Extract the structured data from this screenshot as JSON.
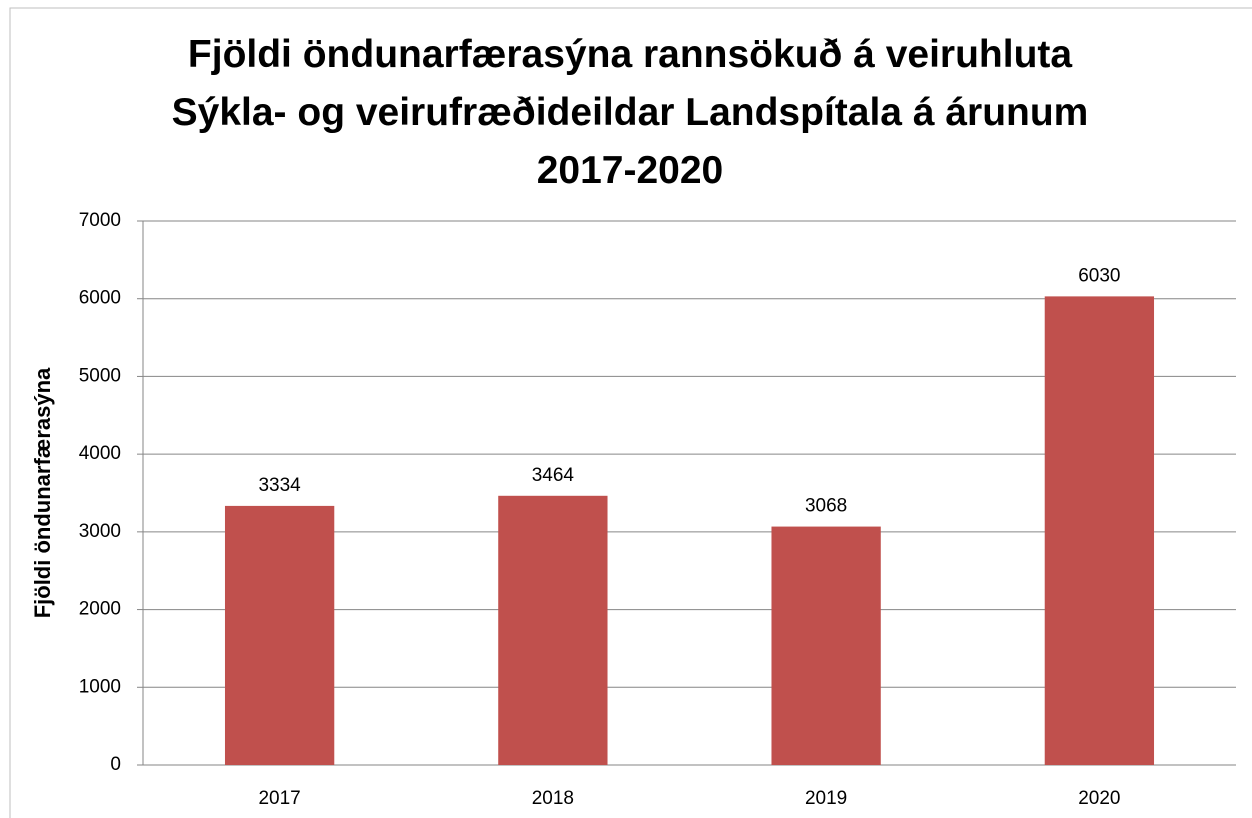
{
  "chart_data": {
    "type": "bar",
    "title": "Fjöldi öndunarfærasýna rannsökuð á veiruhluta Sýkla- og veirufræðideildar Landspítala á árunum 2017-2020",
    "y_label": "Fjöldi öndunarfærasýna",
    "categories": [
      "2017",
      "2018",
      "2019",
      "2020"
    ],
    "values": [
      3334,
      3464,
      3068,
      6030
    ],
    "color": "#c0504d",
    "ylim": [
      0,
      7000
    ],
    "yticks": [
      0,
      1000,
      2000,
      3000,
      4000,
      5000,
      6000,
      7000
    ],
    "grid": true
  }
}
